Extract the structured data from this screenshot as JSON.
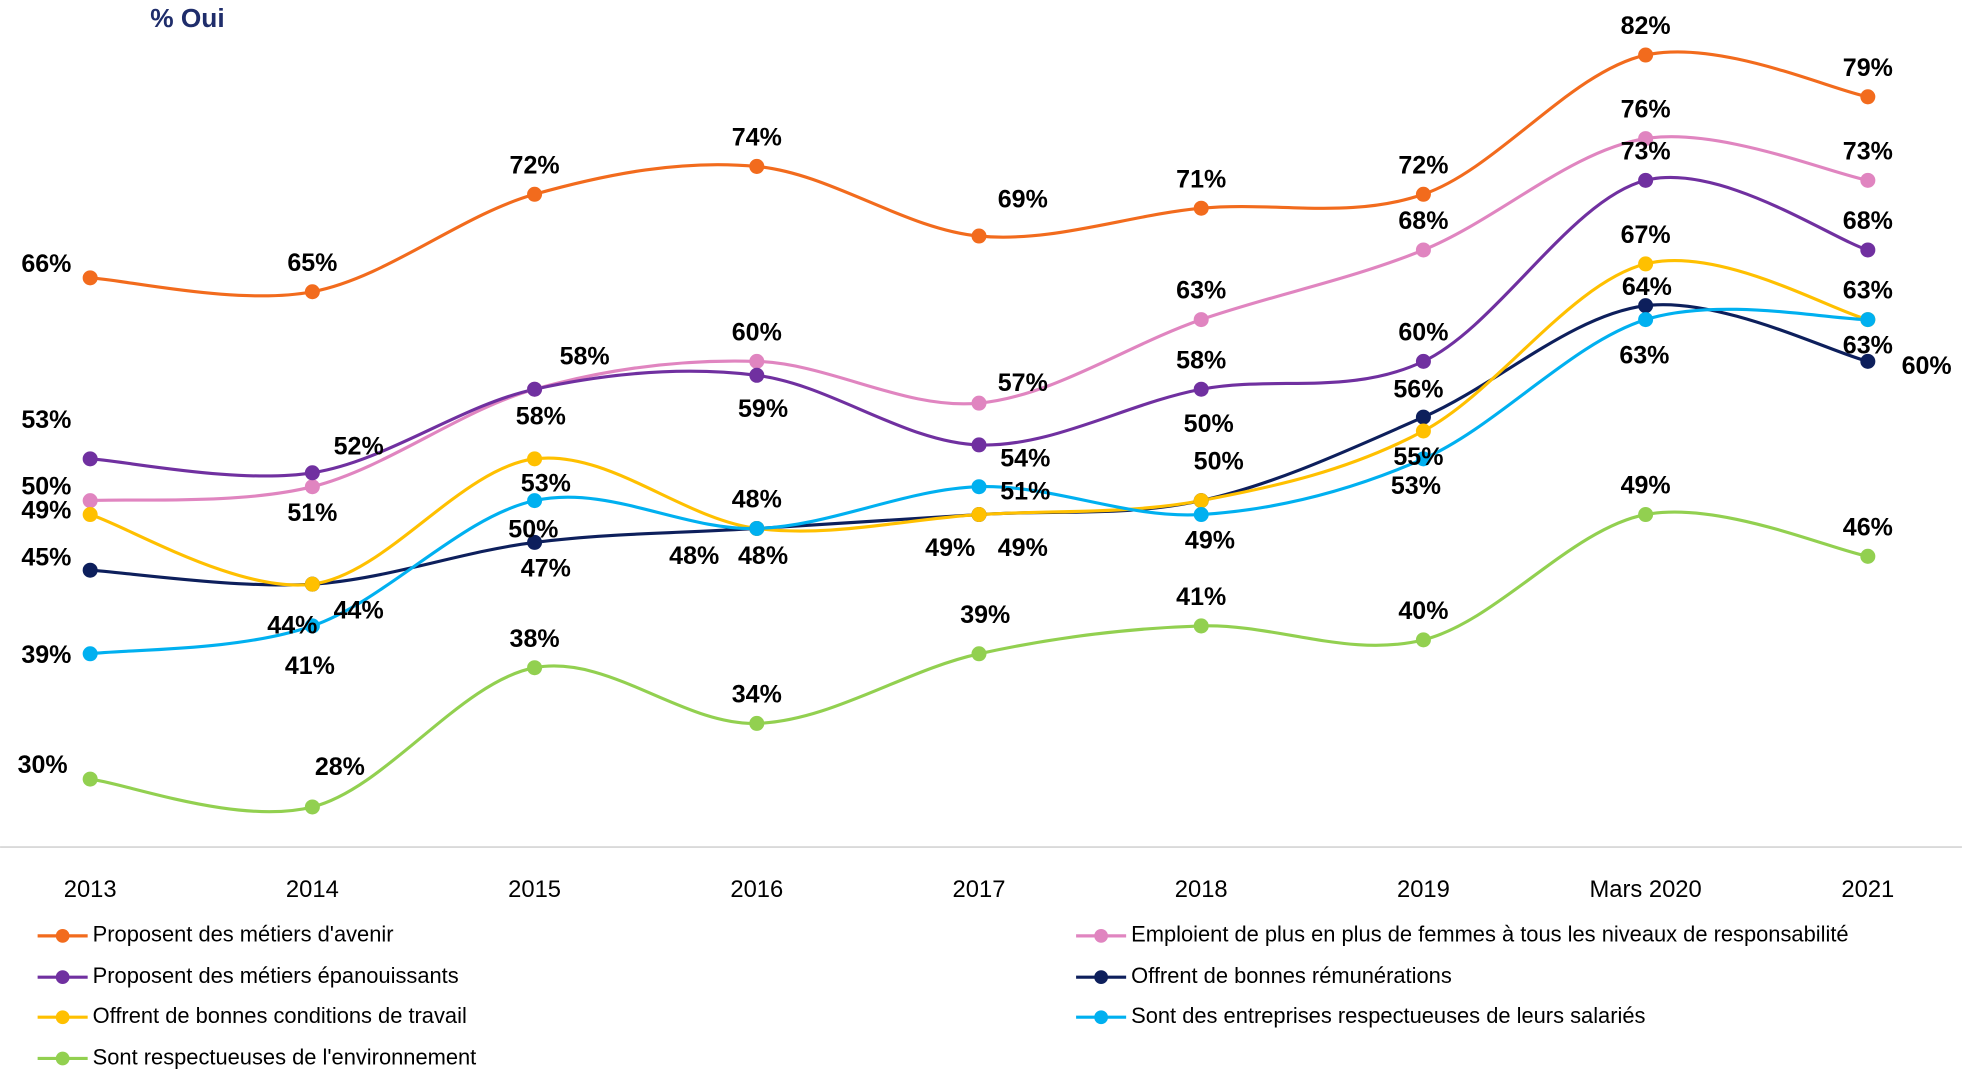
{
  "chart_data": {
    "type": "line",
    "title": "% Oui",
    "categories": [
      "2013",
      "2014",
      "2015",
      "2016",
      "2017",
      "2018",
      "2019",
      "Mars 2020",
      "2021"
    ],
    "ylim": [
      20,
      85
    ],
    "series": [
      {
        "name": "Proposent des métiers d'avenir",
        "color": "#f26b1d",
        "values": [
          66,
          65,
          72,
          74,
          69,
          71,
          72,
          82,
          79
        ],
        "value_labels": [
          "66%",
          "65%",
          "72%",
          "74%",
          "69%",
          "71%",
          "72%",
          "82%",
          "79%"
        ]
      },
      {
        "name": "Emploient de plus en plus de femmes à tous les niveaux de responsabilité",
        "color": "#e085c0",
        "values": [
          50,
          51,
          58,
          60,
          57,
          63,
          68,
          76,
          73
        ],
        "value_labels": [
          "50%",
          "51%",
          "58%",
          "60%",
          "57%",
          "63%",
          "68%",
          "76%",
          "73%"
        ]
      },
      {
        "name": "Proposent des métiers épanouissants",
        "color": "#7030a0",
        "values": [
          53,
          52,
          58,
          59,
          54,
          58,
          60,
          73,
          68
        ],
        "value_labels": [
          "53%",
          "52%",
          "58%",
          "59%",
          "54%",
          "58%",
          "60%",
          "73%",
          "68%"
        ]
      },
      {
        "name": "Offrent de bonnes rémunérations",
        "color": "#0d1f5c",
        "values": [
          45,
          44,
          47,
          48,
          49,
          50,
          56,
          64,
          60
        ],
        "value_labels": [
          "45%",
          "44%",
          "47%",
          "48%",
          "49%",
          "50%",
          "56%",
          "64%",
          "60%"
        ]
      },
      {
        "name": "Offrent de bonnes conditions de travail",
        "color": "#ffc000",
        "values": [
          49,
          44,
          53,
          48,
          49,
          50,
          55,
          67,
          63
        ],
        "value_labels": [
          "49%",
          "44%",
          "53%",
          "48%",
          "49%",
          "50%",
          "55%",
          "67%",
          "63%"
        ]
      },
      {
        "name": "Sont des entreprises respectueuses de leurs salariés",
        "color": "#00b0f0",
        "values": [
          39,
          41,
          50,
          48,
          51,
          49,
          53,
          63,
          63
        ],
        "value_labels": [
          "39%",
          "41%",
          "50%",
          "48%",
          "51%",
          "49%",
          "53%",
          "63%",
          "63%"
        ]
      },
      {
        "name": "Sont respectueuses de l'environnement",
        "color": "#92d050",
        "values": [
          30,
          28,
          38,
          34,
          39,
          41,
          40,
          49,
          46
        ],
        "value_labels": [
          "30%",
          "28%",
          "38%",
          "34%",
          "39%",
          "41%",
          "40%",
          "49%",
          "46%"
        ]
      }
    ]
  }
}
